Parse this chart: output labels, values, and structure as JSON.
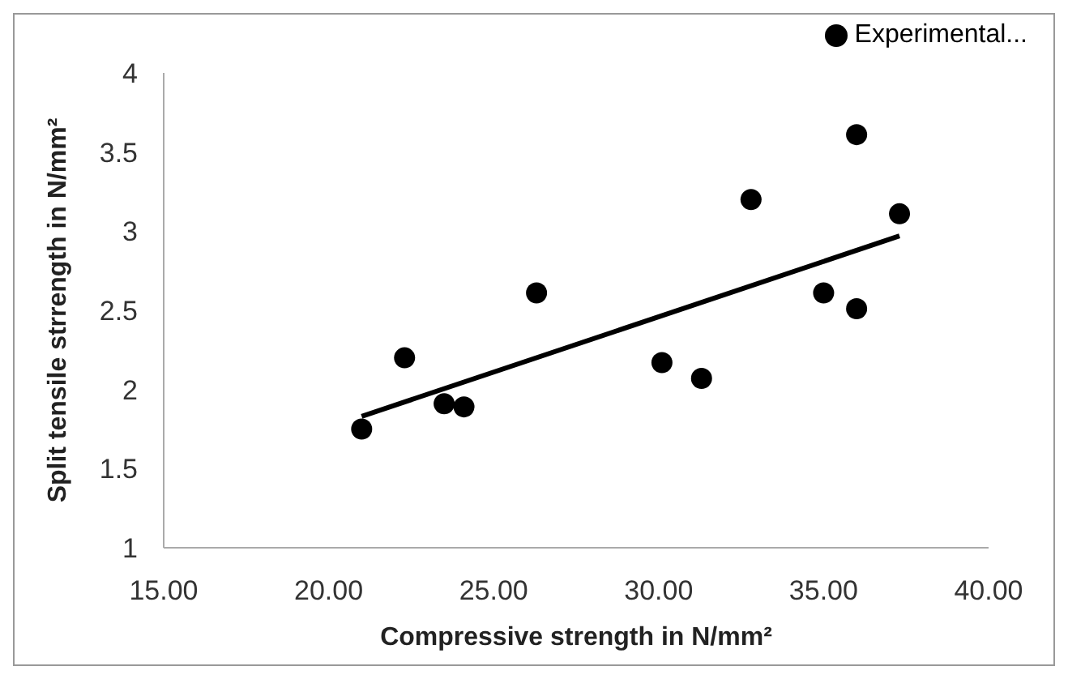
{
  "chart_data": {
    "type": "scatter",
    "xlabel": "Compressive strength in N/mm²",
    "ylabel": "Split tensile strrength in N/mm²",
    "xlim": [
      15,
      40
    ],
    "xticks": [
      {
        "value": 15,
        "label": "15.00"
      },
      {
        "value": 20,
        "label": "20.00"
      },
      {
        "value": 25,
        "label": "25.00"
      },
      {
        "value": 30,
        "label": "30.00"
      },
      {
        "value": 35,
        "label": "35.00"
      },
      {
        "value": 40,
        "label": "40.00"
      }
    ],
    "ylim": [
      1,
      4
    ],
    "yticks": [
      1,
      1.5,
      2,
      2.5,
      3,
      3.5,
      4
    ],
    "grid": false,
    "legend": "top right",
    "series": [
      {
        "name": "Experimental...",
        "marker": "circle",
        "color": "#000000",
        "x": [
          21.0,
          22.3,
          23.5,
          24.1,
          26.3,
          30.1,
          31.3,
          32.8,
          35.0,
          36.0,
          36.0,
          37.3
        ],
        "values": [
          1.75,
          2.2,
          1.91,
          1.89,
          2.61,
          2.17,
          2.07,
          3.2,
          2.61,
          2.51,
          3.61,
          3.11
        ]
      },
      {
        "type": "line",
        "color": "#000000",
        "line_style": "solid",
        "x": [
          21.0,
          37.3
        ],
        "values": [
          1.83,
          2.97
        ]
      }
    ]
  }
}
